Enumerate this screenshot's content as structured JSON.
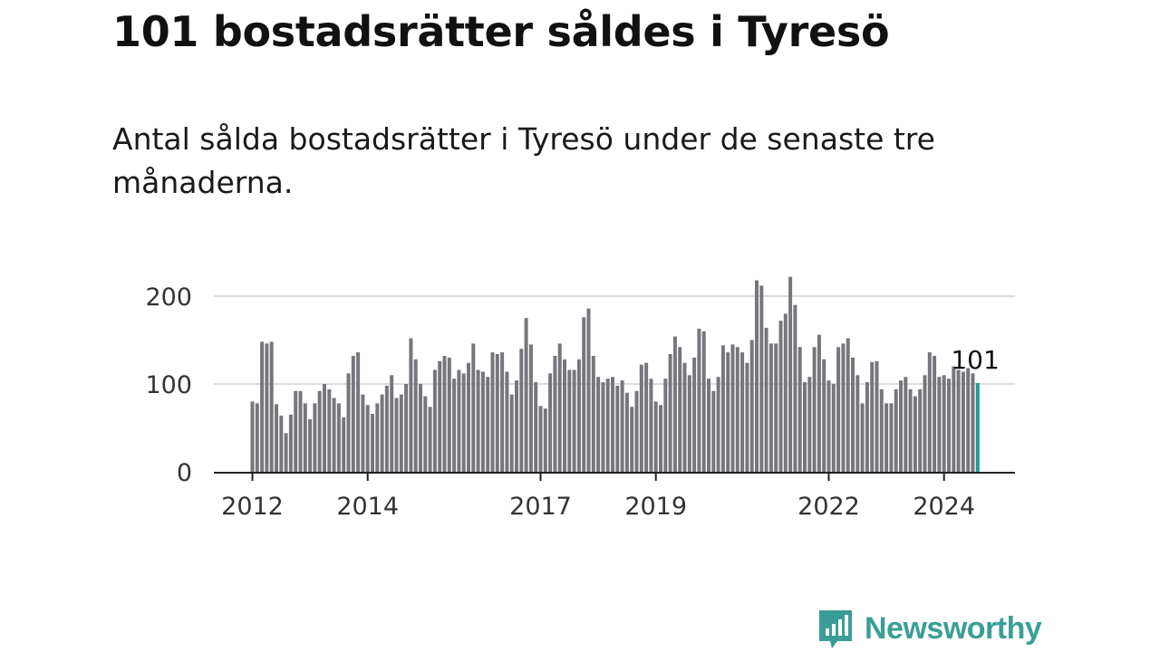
{
  "title": "101 bostadsrätter såldes i Tyresö",
  "subtitle": "Antal sålda bostadsrätter i Tyresö under de senaste tre månaderna.",
  "brand": {
    "name": "Newsworthy",
    "color": "#3a9e96",
    "icon": "newsworthy-bar-chart-icon"
  },
  "colors": {
    "bar": "#77767c",
    "highlight": "#1a9d96",
    "grid": "#dddddd",
    "axis": "#222222",
    "tick_text": "#333333"
  },
  "chart_data": {
    "type": "bar",
    "title": "101 bostadsrätter såldes i Tyresö",
    "subtitle": "Antal sålda bostadsrätter i Tyresö under de senaste tre månaderna.",
    "xlabel": "",
    "ylabel": "",
    "ylim": [
      0,
      230
    ],
    "yticks": [
      0,
      100,
      200
    ],
    "grid": true,
    "x_start": "2012-01",
    "x_tick_labels": [
      {
        "label": "2012",
        "month_index": 0
      },
      {
        "label": "2014",
        "month_index": 24
      },
      {
        "label": "2017",
        "month_index": 60
      },
      {
        "label": "2019",
        "month_index": 84
      },
      {
        "label": "2022",
        "month_index": 120
      },
      {
        "label": "2024",
        "month_index": 144
      }
    ],
    "highlight_label": "101",
    "values": [
      80,
      78,
      148,
      146,
      148,
      77,
      64,
      44,
      65,
      92,
      92,
      78,
      60,
      78,
      92,
      100,
      94,
      84,
      78,
      62,
      112,
      132,
      136,
      88,
      76,
      66,
      78,
      88,
      98,
      110,
      84,
      88,
      100,
      152,
      128,
      100,
      86,
      74,
      116,
      126,
      132,
      130,
      106,
      116,
      112,
      124,
      146,
      116,
      114,
      108,
      136,
      134,
      136,
      114,
      88,
      104,
      140,
      175,
      145,
      102,
      75,
      72,
      112,
      132,
      146,
      128,
      116,
      116,
      128,
      176,
      186,
      132,
      108,
      102,
      106,
      108,
      98,
      104,
      90,
      74,
      92,
      122,
      124,
      106,
      80,
      76,
      106,
      134,
      154,
      142,
      124,
      110,
      130,
      163,
      160,
      106,
      92,
      108,
      144,
      136,
      145,
      142,
      136,
      124,
      150,
      218,
      212,
      164,
      146,
      146,
      172,
      180,
      222,
      190,
      142,
      102,
      108,
      142,
      156,
      128,
      104,
      100,
      142,
      146,
      152,
      130,
      110,
      78,
      102,
      125,
      126,
      94,
      78,
      78,
      94,
      104,
      108,
      94,
      86,
      94,
      110,
      136,
      132,
      108,
      110,
      106,
      120,
      116,
      114,
      118,
      112,
      101
    ],
    "highlight_index": 151
  }
}
